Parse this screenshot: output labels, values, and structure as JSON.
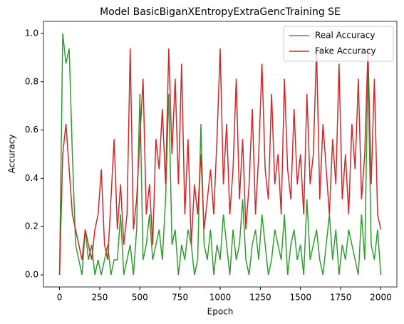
{
  "chart_data": {
    "type": "line",
    "title": "Model BasicBiganXEntropyExtraGencTraining SE",
    "xlabel": "Epoch",
    "ylabel": "Accuracy",
    "x": [
      0,
      20,
      40,
      60,
      80,
      100,
      120,
      140,
      160,
      180,
      200,
      220,
      240,
      260,
      280,
      300,
      320,
      340,
      360,
      380,
      400,
      420,
      440,
      460,
      480,
      500,
      520,
      540,
      560,
      580,
      600,
      620,
      640,
      660,
      680,
      700,
      720,
      740,
      760,
      780,
      800,
      820,
      840,
      860,
      880,
      900,
      920,
      940,
      960,
      980,
      1000,
      1020,
      1040,
      1060,
      1080,
      1100,
      1120,
      1140,
      1160,
      1180,
      1200,
      1220,
      1240,
      1260,
      1280,
      1300,
      1320,
      1340,
      1360,
      1380,
      1400,
      1420,
      1440,
      1460,
      1480,
      1500,
      1520,
      1540,
      1560,
      1580,
      1600,
      1620,
      1640,
      1660,
      1680,
      1700,
      1720,
      1740,
      1760,
      1780,
      1800,
      1820,
      1840,
      1860,
      1880,
      1900,
      1920,
      1940,
      1960,
      1980,
      2000
    ],
    "series": [
      {
        "name": "Real Accuracy",
        "color": "#2ca02c",
        "values": [
          0,
          1,
          0.875,
          0.9375,
          0.5,
          0.125,
          0.0625,
          0,
          0.1875,
          0.0625,
          0.125,
          0,
          0.0625,
          0,
          0.0625,
          0.125,
          0,
          0.0625,
          0.0625,
          0.25,
          0,
          0.0625,
          0.125,
          0,
          0.1875,
          0.75,
          0.0625,
          0.125,
          0.25,
          0.0625,
          0.125,
          0.1875,
          0.0625,
          0.3125,
          0.75,
          0.125,
          0.1875,
          0,
          0.125,
          0.0625,
          0.1875,
          0.125,
          0,
          0.0625,
          0.625,
          0.125,
          0.0625,
          0.1875,
          0,
          0.125,
          0.0625,
          0.25,
          0.125,
          0,
          0.1875,
          0.0625,
          0.125,
          0.3125,
          0.0625,
          0,
          0.125,
          0.1875,
          0.0625,
          0.25,
          0.125,
          0,
          0.0625,
          0.1875,
          0.125,
          0.0625,
          0.25,
          0,
          0.125,
          0.1875,
          0.0625,
          0.125,
          0,
          0.3125,
          0.0625,
          0.125,
          0.1875,
          0.0625,
          0,
          0.125,
          0.25,
          0.0625,
          0.1875,
          0,
          0.125,
          0.0625,
          0.1875,
          0.125,
          0.0625,
          0,
          0.25,
          0.0625,
          0.875,
          0.125,
          0.0625,
          0.1875,
          0
        ]
      },
      {
        "name": "Fake Accuracy",
        "color": "#d62728",
        "values": [
          0,
          0.5,
          0.625,
          0.4375,
          0.25,
          0.1875,
          0.125,
          0.0625,
          0.1875,
          0.125,
          0.0625,
          0.1875,
          0.25,
          0.4375,
          0.125,
          0.0625,
          0.3125,
          0.5625,
          0.1875,
          0.375,
          0.125,
          0.25,
          0.9375,
          0.1875,
          0.3125,
          0.5625,
          0.8125,
          0.25,
          0.375,
          0.125,
          0.5625,
          0.4375,
          0.6875,
          0.375,
          0.9375,
          0.5,
          0.8125,
          0.375,
          0.875,
          0.25,
          0.5625,
          0.125,
          0.375,
          0.25,
          0.5,
          0.1875,
          0.3125,
          0.4375,
          0.25,
          0.5625,
          0.9375,
          0.375,
          0.625,
          0.25,
          0.4375,
          0.8125,
          0.3125,
          0.5625,
          0.1875,
          0.375,
          0.6875,
          0.25,
          0.5,
          0.875,
          0.4375,
          0.3125,
          0.75,
          0.375,
          0.5,
          0.25,
          0.8125,
          0.4375,
          0.3125,
          0.6875,
          0.375,
          0.5,
          0.25,
          0.75,
          0.375,
          0.5,
          0.9375,
          0.3125,
          0.625,
          0.4375,
          0.25,
          0.5625,
          0.375,
          0.875,
          0.3125,
          0.5,
          0.25,
          0.625,
          0.4375,
          0.8125,
          0.3125,
          0.5,
          0.9375,
          0.375,
          0.8125,
          0.25,
          0.1875
        ]
      }
    ],
    "xlim": [
      -100,
      2100
    ],
    "ylim": [
      -0.05,
      1.05
    ],
    "xticks": [
      0,
      250,
      500,
      750,
      1000,
      1250,
      1500,
      1750,
      2000
    ],
    "yticks": [
      {
        "value": 0,
        "label": "0.0"
      },
      {
        "value": 0.2,
        "label": "0.2"
      },
      {
        "value": 0.4,
        "label": "0.4"
      },
      {
        "value": 0.6,
        "label": "0.6"
      },
      {
        "value": 0.8,
        "label": "0.8"
      },
      {
        "value": 1,
        "label": "1.0"
      }
    ],
    "legend": "upper right"
  }
}
